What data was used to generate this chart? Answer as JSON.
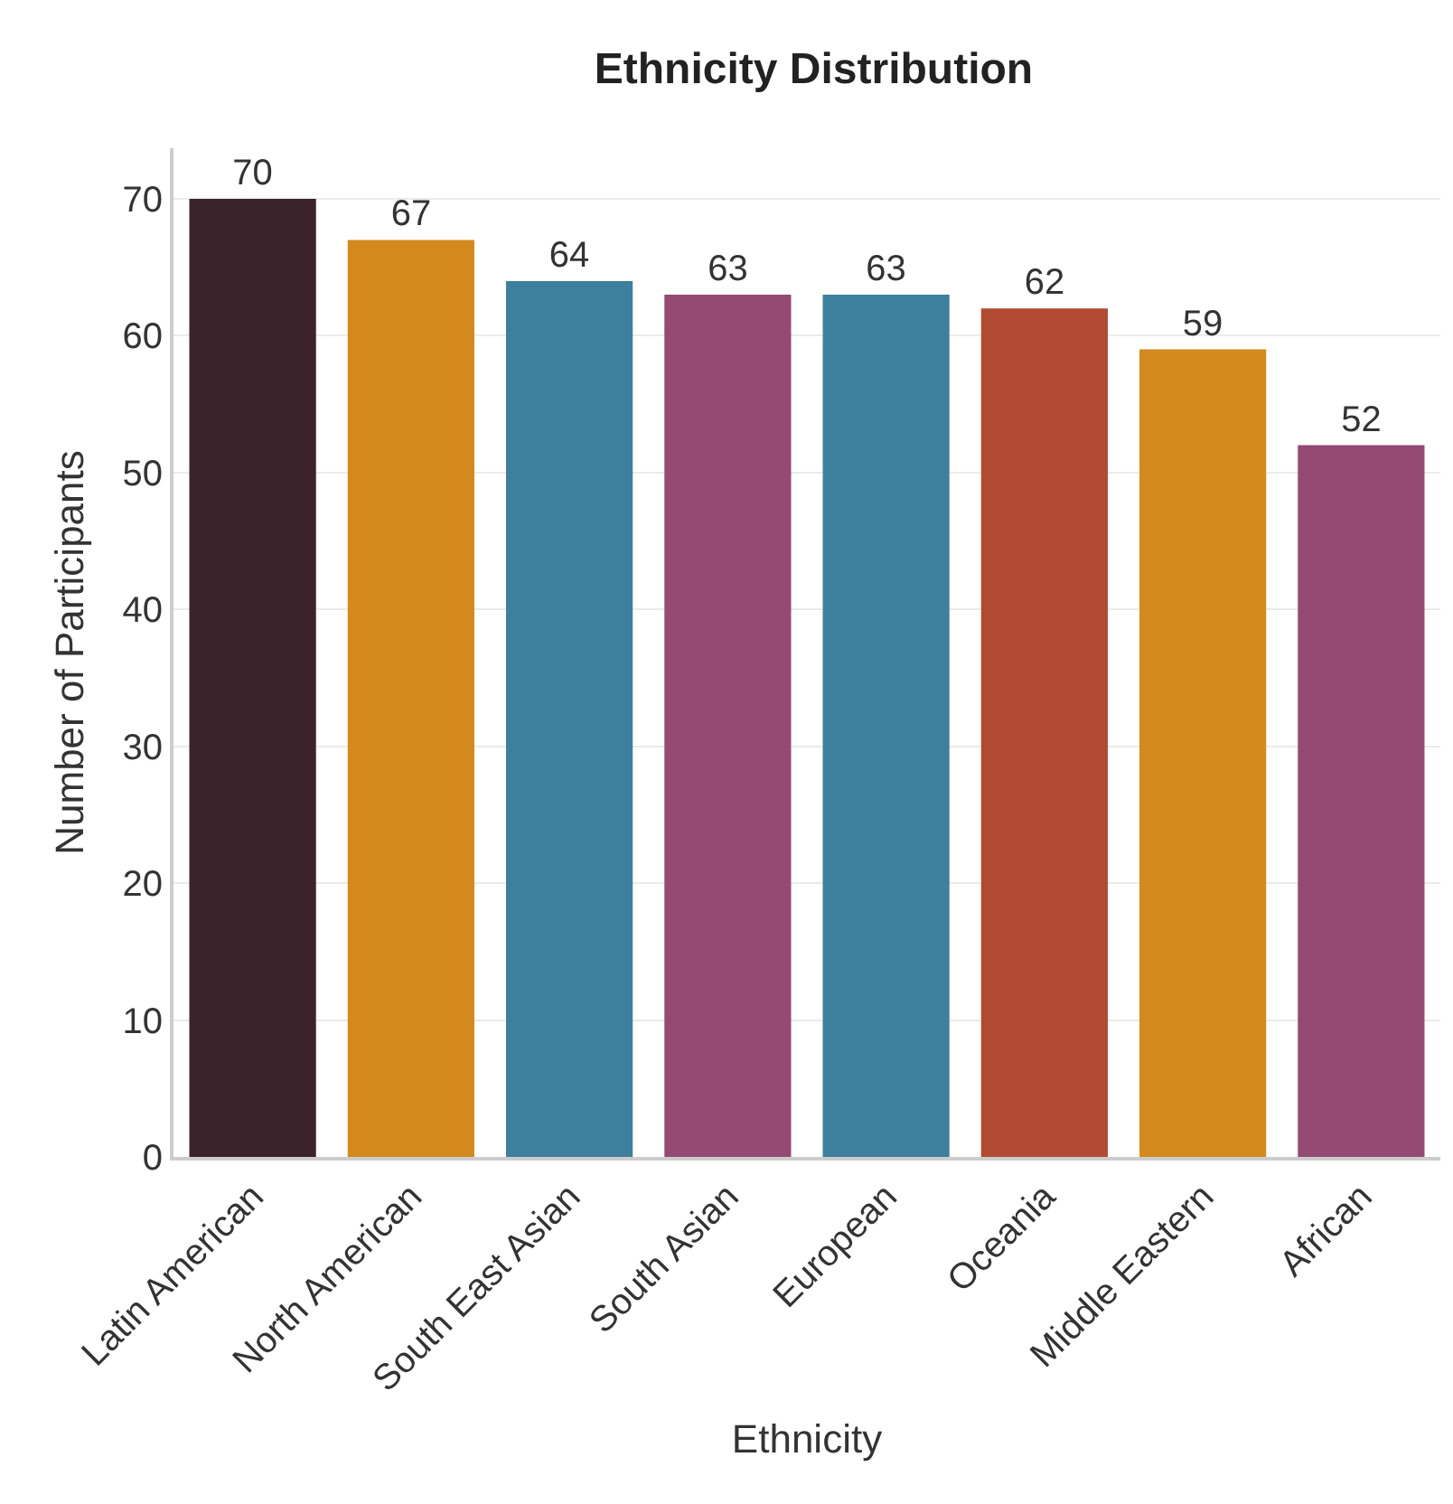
{
  "chart_data": {
    "type": "bar",
    "title": "Ethnicity Distribution",
    "xlabel": "Ethnicity",
    "ylabel": "Number of Participants",
    "categories": [
      "Latin American",
      "North American",
      "South East Asian",
      "South Asian",
      "European",
      "Oceania",
      "Middle Eastern",
      "African"
    ],
    "values": [
      70,
      67,
      64,
      63,
      63,
      62,
      59,
      52
    ],
    "colors": [
      "#3b222b",
      "#d4891e",
      "#3d7f9c",
      "#944a73",
      "#3d7f9c",
      "#b04a30",
      "#d4891e",
      "#944a73"
    ],
    "ylim": [
      0,
      73.7
    ],
    "yticks": [
      0,
      10,
      20,
      30,
      40,
      50,
      60,
      70
    ],
    "grid": "y",
    "data_labels": true,
    "legend": false
  }
}
